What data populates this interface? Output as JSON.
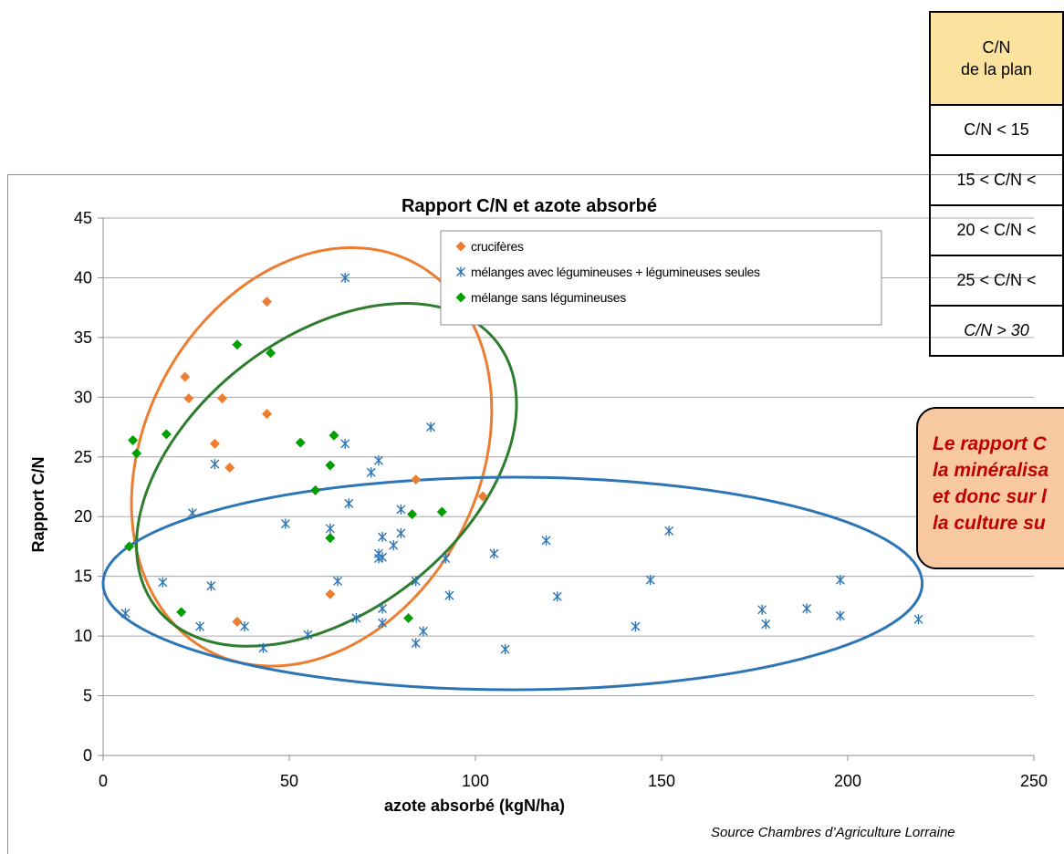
{
  "table": {
    "header_line1": "C/N",
    "header_line2": "de la plan",
    "rows": [
      "C/N < 15",
      "15 < C/N <",
      "20 < C/N <",
      "25 < C/N <",
      "C/N > 30"
    ]
  },
  "callout": {
    "lines": [
      "Le rapport C",
      "la minéralisa",
      "et donc sur l",
      "la culture su"
    ]
  },
  "source": "Source Chambres d’Agriculture Lorraine",
  "chart_data": {
    "type": "scatter",
    "title": "Rapport C/N et azote absorbé",
    "xlabel": "azote absorbé (kgN/ha)",
    "ylabel": "Rapport  C/N",
    "xlim": [
      0,
      250
    ],
    "ylim": [
      0,
      45
    ],
    "xticks": [
      0,
      50,
      100,
      150,
      200,
      250
    ],
    "yticks": [
      0,
      5,
      10,
      15,
      20,
      25,
      30,
      35,
      40,
      45
    ],
    "grid": "horizontal",
    "legend_position": "top-center",
    "series": [
      {
        "name": "crucifères",
        "color": "#ed7d31",
        "marker": "diamond",
        "points": [
          [
            22,
            31.7
          ],
          [
            23,
            29.9
          ],
          [
            30,
            26.1
          ],
          [
            32,
            29.9
          ],
          [
            34,
            24.1
          ],
          [
            36,
            11.2
          ],
          [
            44,
            38
          ],
          [
            44,
            28.6
          ],
          [
            61,
            13.5
          ],
          [
            84,
            23.1
          ],
          [
            102,
            21.7
          ]
        ]
      },
      {
        "name": "mélanges avec légumineuses + légumineuses seules",
        "color": "#2e75b6",
        "marker": "asterisk",
        "points": [
          [
            6,
            11.9
          ],
          [
            16,
            14.5
          ],
          [
            24,
            20.3
          ],
          [
            26,
            10.8
          ],
          [
            29,
            14.2
          ],
          [
            30,
            24.4
          ],
          [
            38,
            10.8
          ],
          [
            43,
            9
          ],
          [
            49,
            19.4
          ],
          [
            55,
            10.1
          ],
          [
            61,
            19
          ],
          [
            63,
            14.6
          ],
          [
            65,
            40
          ],
          [
            65,
            26.1
          ],
          [
            66,
            21.1
          ],
          [
            68,
            11.5
          ],
          [
            72,
            23.7
          ],
          [
            74,
            24.7
          ],
          [
            74,
            16.9
          ],
          [
            74,
            16.5
          ],
          [
            75,
            18.3
          ],
          [
            75,
            16.6
          ],
          [
            75,
            12.3
          ],
          [
            75,
            11.1
          ],
          [
            78,
            17.6
          ],
          [
            80,
            20.6
          ],
          [
            80,
            18.6
          ],
          [
            84,
            9.4
          ],
          [
            84,
            14.6
          ],
          [
            86,
            10.4
          ],
          [
            88,
            27.5
          ],
          [
            92,
            16.5
          ],
          [
            93,
            13.4
          ],
          [
            105,
            16.9
          ],
          [
            108,
            8.9
          ],
          [
            119,
            18
          ],
          [
            122,
            13.3
          ],
          [
            143,
            10.8
          ],
          [
            147,
            14.7
          ],
          [
            152,
            18.8
          ],
          [
            177,
            12.2
          ],
          [
            178,
            11
          ],
          [
            189,
            12.3
          ],
          [
            198,
            14.7
          ],
          [
            198,
            11.7
          ],
          [
            219,
            11.4
          ]
        ]
      },
      {
        "name": "mélange sans légumineuses",
        "color": "#00a000",
        "marker": "diamond",
        "points": [
          [
            7,
            17.5
          ],
          [
            8,
            26.4
          ],
          [
            9,
            25.3
          ],
          [
            17,
            26.9
          ],
          [
            21,
            12
          ],
          [
            36,
            34.4
          ],
          [
            45,
            33.7
          ],
          [
            53,
            26.2
          ],
          [
            57,
            22.2
          ],
          [
            61,
            24.3
          ],
          [
            61,
            18.2
          ],
          [
            62,
            26.8
          ],
          [
            82,
            11.5
          ],
          [
            83,
            20.2
          ],
          [
            91,
            20.4
          ]
        ]
      }
    ],
    "ellipses": [
      {
        "color": "#ed7d31",
        "cx": 56,
        "cy": 25,
        "rx": 59,
        "ry": 14,
        "angle": -62
      },
      {
        "color": "#2e7d2e",
        "cx": 60,
        "cy": 23.5,
        "rx": 58,
        "ry": 11.5,
        "angle": -38
      },
      {
        "color": "#2e75b6",
        "cx": 110,
        "cy": 14.4,
        "rx": 110,
        "ry": 8.9,
        "angle": 0
      }
    ]
  }
}
